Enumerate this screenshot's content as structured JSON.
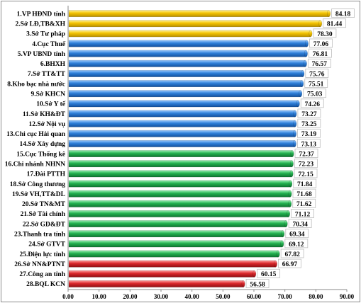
{
  "chart_data": {
    "type": "bar",
    "orientation": "horizontal",
    "title": "",
    "xlabel": "",
    "ylabel": "",
    "xlim": [
      0,
      90
    ],
    "x_ticks": [
      "0.00",
      "10.00",
      "20.00",
      "30.00",
      "40.00",
      "50.00",
      "60.00",
      "70.00",
      "80.00",
      "90.00"
    ],
    "grid": false,
    "legend": "none",
    "categories": [
      "1.VP HĐND tỉnh",
      "2.Sở LĐ,TB&XH",
      "3.Sở Tư pháp",
      "4.Cục Thuế",
      "5.VP UBND tỉnh",
      "6.BHXH",
      "7.Sở TT&TT",
      "8.Kho bạc nhà nước",
      "9.Sở KHCN",
      "10.Sở Y tế",
      "11.Sở KH&ĐT",
      "12.Sở Nội vụ",
      "13.Chi cục Hải quan",
      "14.Sở Xây dựng",
      "15.Cục Thống kê",
      "16.Chi nhánh NHNN",
      "17.Đài PTTH",
      "18.Sở Công thương",
      "19.Sở VH,TT&DL",
      "20.Sở TN&MT",
      "21.Sở Tài chính",
      "22.Sở GD&ĐT",
      "23.Thanh tra tỉnh",
      "24.Sở GTVT",
      "25.Điện lực tỉnh",
      "26.Sở NN&PTNT",
      "27.Công an tỉnh",
      "28.BQL KCN"
    ],
    "values": [
      84.18,
      81.44,
      78.3,
      77.06,
      76.81,
      76.57,
      75.76,
      75.51,
      75.03,
      74.26,
      73.27,
      73.25,
      73.19,
      73.13,
      72.37,
      72.23,
      72.15,
      71.84,
      71.68,
      71.62,
      71.12,
      70.34,
      69.34,
      69.12,
      67.82,
      66.97,
      60.15,
      56.58
    ],
    "value_labels": [
      "84.18",
      "81.44",
      "78.30",
      "77.06",
      "76.81",
      "76.57",
      "75.76",
      "75.51",
      "75.03",
      "74.26",
      "73.27",
      "73.25",
      "73.19",
      "73.13",
      "72.37",
      "72.23",
      "72.15",
      "71.84",
      "71.68",
      "71.62",
      "71.12",
      "70.34",
      "69.34",
      "69.12",
      "67.82",
      "66.97",
      "60.15",
      "56.58"
    ],
    "bar_colors": [
      "#F2C200",
      "#F2C200",
      "#F2C200",
      "#2E7FD8",
      "#2E7FD8",
      "#2E7FD8",
      "#2E7FD8",
      "#2E7FD8",
      "#2E7FD8",
      "#2E7FD8",
      "#2E7FD8",
      "#2E7FD8",
      "#2E7FD8",
      "#2E7FD8",
      "#22B04E",
      "#22B04E",
      "#22B04E",
      "#22B04E",
      "#22B04E",
      "#22B04E",
      "#22B04E",
      "#22B04E",
      "#22B04E",
      "#22B04E",
      "#22B04E",
      "#D9262A",
      "#D9262A",
      "#D9262A"
    ]
  }
}
